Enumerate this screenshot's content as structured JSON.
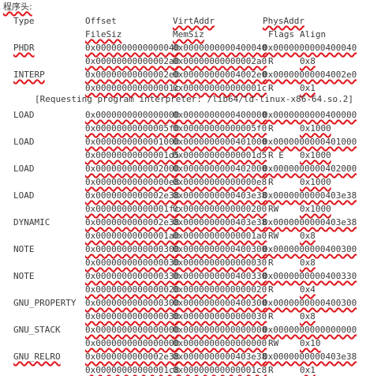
{
  "header": {
    "title": "程序头:",
    "col_type": "Type",
    "col_offset": "Offset",
    "col_virtaddr": "VirtAddr",
    "col_physaddr": "PhysAddr",
    "col_filesiz": "FileSiz",
    "col_memsiz": "MemSiz",
    "col_flags": "Flags",
    "col_align": "Align"
  },
  "interpreter_note": "[Requesting program interpreter: /lib64/ld-linux-x86-64.so.2]",
  "segments": [
    {
      "type": "PHDR",
      "offset": "0x0000000000000040",
      "virtaddr": "0x0000000000400040",
      "physaddr": "0x0000000000400040",
      "filesiz": "0x00000000000002a0",
      "memsiz": "0x00000000000002a0",
      "flags": "R",
      "align": "0x8"
    },
    {
      "type": "INTERP",
      "offset": "0x00000000000002e0",
      "virtaddr": "0x00000000004002e0",
      "physaddr": "0x00000000004002e0",
      "filesiz": "0x000000000000001c",
      "memsiz": "0x000000000000001c",
      "flags": "R",
      "align": "0x1"
    },
    {
      "type": "LOAD",
      "offset": "0x0000000000000000",
      "virtaddr": "0x0000000000400000",
      "physaddr": "0x0000000000400000",
      "filesiz": "0x00000000000005f0",
      "memsiz": "0x00000000000005f0",
      "flags": "R",
      "align": "0x1000"
    },
    {
      "type": "LOAD",
      "offset": "0x0000000000001000",
      "virtaddr": "0x0000000000401000",
      "physaddr": "0x0000000000401000",
      "filesiz": "0x00000000000001d5",
      "memsiz": "0x00000000000001d5",
      "flags": "R E",
      "align": "0x1000"
    },
    {
      "type": "LOAD",
      "offset": "0x0000000000002000",
      "virtaddr": "0x0000000000402000",
      "physaddr": "0x0000000000402000",
      "filesiz": "0x00000000000000e8",
      "memsiz": "0x00000000000000e8",
      "flags": "R",
      "align": "0x1000"
    },
    {
      "type": "LOAD",
      "offset": "0x0000000000002e38",
      "virtaddr": "0x0000000000403e38",
      "physaddr": "0x0000000000403e38",
      "filesiz": "0x00000000000001fc",
      "memsiz": "0x0000000000000200",
      "flags": "RW",
      "align": "0x1000"
    },
    {
      "type": "DYNAMIC",
      "offset": "0x0000000000002e38",
      "virtaddr": "0x0000000000403e38",
      "physaddr": "0x0000000000403e38",
      "filesiz": "0x00000000000001a0",
      "memsiz": "0x00000000000001a0",
      "flags": "RW",
      "align": "0x8"
    },
    {
      "type": "NOTE",
      "offset": "0x0000000000000300",
      "virtaddr": "0x0000000000400300",
      "physaddr": "0x0000000000400300",
      "filesiz": "0x0000000000000030",
      "memsiz": "0x0000000000000030",
      "flags": "R",
      "align": "0x8"
    },
    {
      "type": "NOTE",
      "offset": "0x0000000000000330",
      "virtaddr": "0x0000000000400330",
      "physaddr": "0x0000000000400330",
      "filesiz": "0x0000000000000020",
      "memsiz": "0x0000000000000020",
      "flags": "R",
      "align": "0x4"
    },
    {
      "type": "GNU_PROPERTY",
      "offset": "0x0000000000000300",
      "virtaddr": "0x0000000000400300",
      "physaddr": "0x0000000000400300",
      "filesiz": "0x0000000000000030",
      "memsiz": "0x0000000000000030",
      "flags": "R",
      "align": "0x8"
    },
    {
      "type": "GNU_STACK",
      "offset": "0x0000000000000000",
      "virtaddr": "0x0000000000000000",
      "physaddr": "0x0000000000000000",
      "filesiz": "0x0000000000000000",
      "memsiz": "0x0000000000000000",
      "flags": "RW",
      "align": "0x10"
    },
    {
      "type": "GNU_RELRO",
      "offset": "0x0000000000002e38",
      "virtaddr": "0x0000000000403e38",
      "physaddr": "0x0000000000403e38",
      "filesiz": "0x00000000000001c8",
      "memsiz": "0x00000000000001c8",
      "flags": "R",
      "align": "0x1"
    }
  ]
}
